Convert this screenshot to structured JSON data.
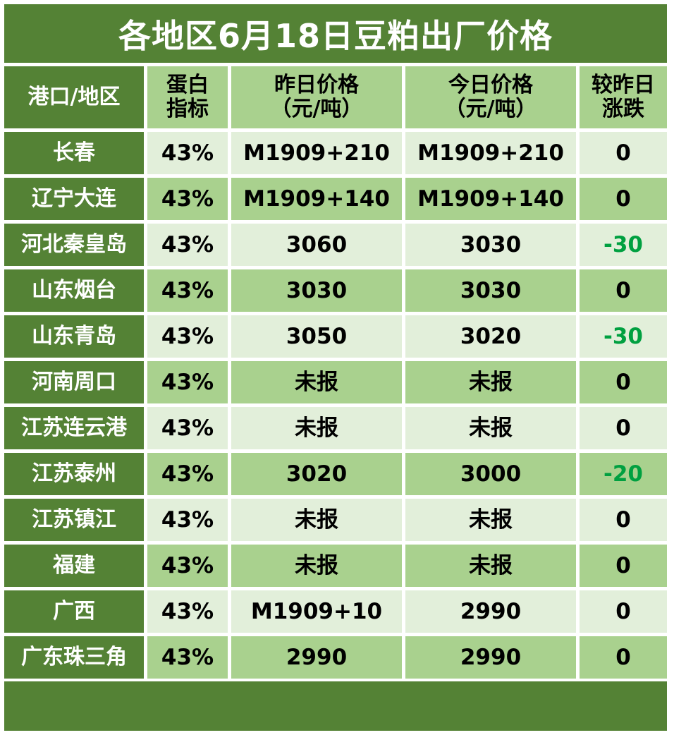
{
  "title": "各地区6月18日豆粕出厂价格",
  "colors": {
    "header_dark": "#548235",
    "header_light": "#a9d18e",
    "row_light": "#e2efda",
    "row_dark": "#a9d18e",
    "negative_change": "#00a040"
  },
  "table": {
    "headers": {
      "region": "港口/地区",
      "protein_l1": "蛋白",
      "protein_l2": "指标",
      "yesterday_l1": "昨日价格",
      "yesterday_l2": "（元/吨）",
      "today_l1": "今日价格",
      "today_l2": "（元/吨）",
      "change_l1": "较昨日",
      "change_l2": "涨跌"
    },
    "rows": [
      {
        "region": "长春",
        "protein": "43%",
        "yesterday": "M1909+210",
        "today": "M1909+210",
        "change": "0"
      },
      {
        "region": "辽宁大连",
        "protein": "43%",
        "yesterday": "M1909+140",
        "today": "M1909+140",
        "change": "0"
      },
      {
        "region": "河北秦皇岛",
        "protein": "43%",
        "yesterday": "3060",
        "today": "3030",
        "change": "-30"
      },
      {
        "region": "山东烟台",
        "protein": "43%",
        "yesterday": "3030",
        "today": "3030",
        "change": "0"
      },
      {
        "region": "山东青岛",
        "protein": "43%",
        "yesterday": "3050",
        "today": "3020",
        "change": "-30"
      },
      {
        "region": "河南周口",
        "protein": "43%",
        "yesterday": "未报",
        "today": "未报",
        "change": "0"
      },
      {
        "region": "江苏连云港",
        "protein": "43%",
        "yesterday": "未报",
        "today": "未报",
        "change": "0"
      },
      {
        "region": "江苏泰州",
        "protein": "43%",
        "yesterday": "3020",
        "today": "3000",
        "change": "-20"
      },
      {
        "region": "江苏镇江",
        "protein": "43%",
        "yesterday": "未报",
        "today": "未报",
        "change": "0"
      },
      {
        "region": "福建",
        "protein": "43%",
        "yesterday": "未报",
        "today": "未报",
        "change": "0"
      },
      {
        "region": "广西",
        "protein": "43%",
        "yesterday": "M1909+10",
        "today": "2990",
        "change": "0"
      },
      {
        "region": "广东珠三角",
        "protein": "43%",
        "yesterday": "2990",
        "today": "2990",
        "change": "0"
      }
    ]
  }
}
